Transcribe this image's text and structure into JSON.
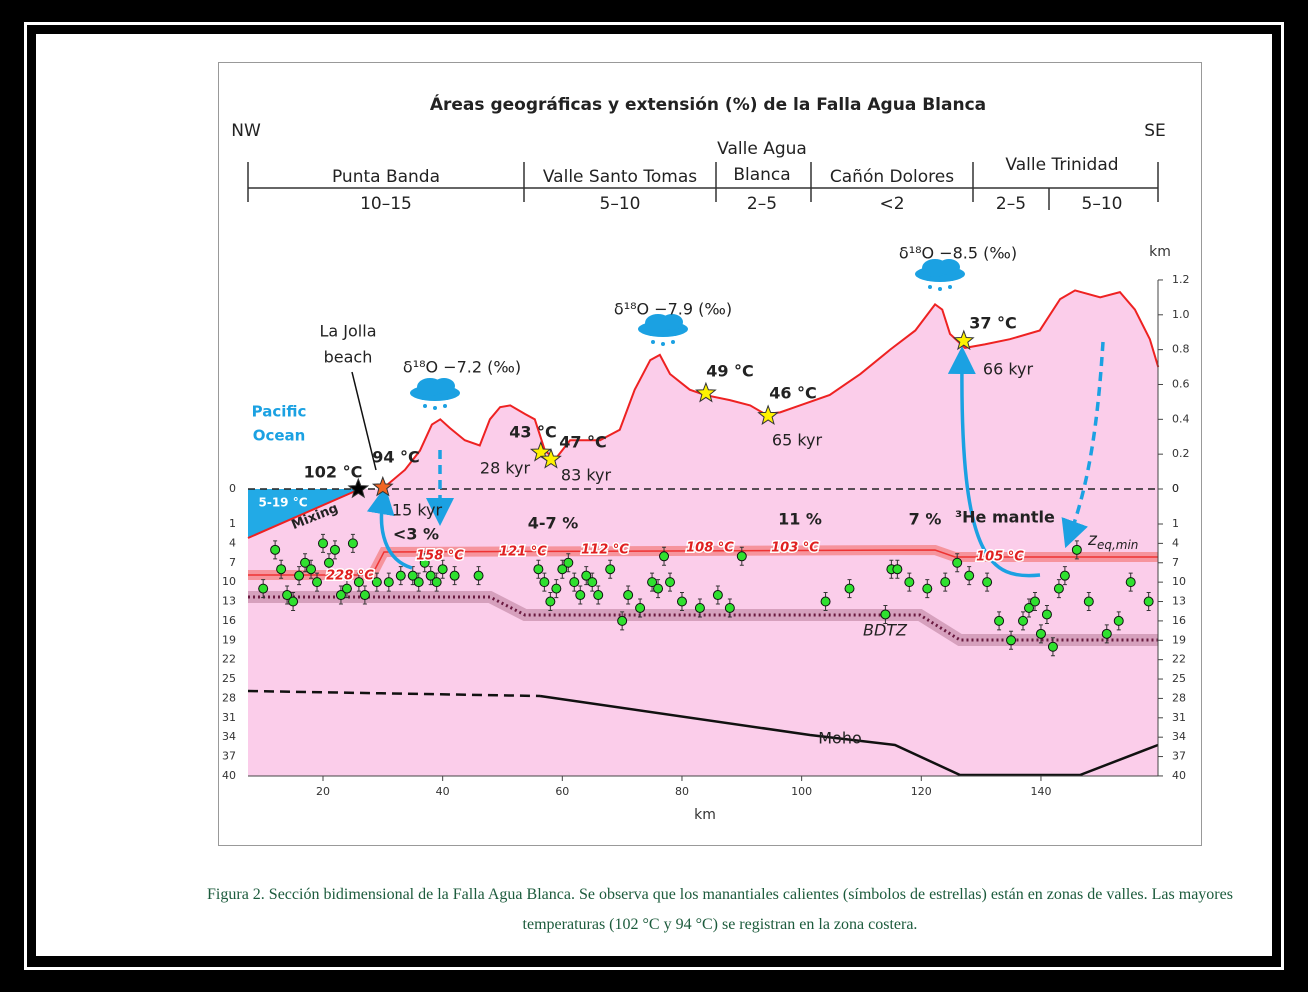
{
  "title": "Áreas geográficas y extensión (%) de la Falla Agua Blanca",
  "nw": "NW",
  "se": "SE",
  "regions": [
    {
      "name_lines": [
        "Punta Banda"
      ],
      "extension": "10–15"
    },
    {
      "name_lines": [
        "Valle Santo Tomas"
      ],
      "extension": "5–10"
    },
    {
      "name_lines": [
        "Valle Agua",
        "Blanca"
      ],
      "extension": "2–5"
    },
    {
      "name_lines": [
        "Cañón Dolores"
      ],
      "extension": "<2"
    },
    {
      "name_lines": [
        "Valle Trinidad"
      ],
      "extensions": [
        "2–5",
        "5–10"
      ]
    }
  ],
  "axes": {
    "xlabel": "km",
    "ylabel_right": "km",
    "xticks": [
      20,
      40,
      60,
      80,
      100,
      120,
      140
    ],
    "elev_ticks": [
      0,
      0.2,
      0.4,
      0.6,
      0.8,
      {
        "value": 1,
        "label": "1.0"
      },
      1.2
    ],
    "depth_ticks": [
      0,
      1,
      4,
      7,
      10,
      13,
      16,
      19,
      22,
      25,
      28,
      31,
      34,
      37,
      40
    ]
  },
  "topography": {
    "km": [
      29.9,
      33.7,
      36.2,
      38.2,
      39.6,
      41.2,
      43.7,
      46.2,
      47.9,
      49.6,
      51.3,
      53.8,
      55.4,
      57.1,
      58.8,
      61.3,
      63.8,
      66.3,
      69.6,
      72.1,
      74.7,
      76.3,
      78.0,
      81.3,
      83.8,
      88.0,
      91.4,
      93.9,
      96.4,
      99.7,
      104.7,
      109.8,
      114.8,
      119.0,
      122.3,
      123.5,
      124.8,
      127.3,
      130.6,
      134.8,
      139.8,
      143.2,
      145.7,
      149.9,
      153.2,
      155.7,
      158.2,
      159.6
    ],
    "elev": [
      0,
      0.11,
      0.22,
      0.37,
      0.4,
      0.35,
      0.28,
      0.25,
      0.4,
      0.47,
      0.48,
      0.43,
      0.4,
      0.22,
      0.17,
      0.28,
      0.28,
      0.28,
      0.34,
      0.57,
      0.74,
      0.77,
      0.66,
      0.57,
      0.54,
      0.51,
      0.48,
      0.43,
      0.44,
      0.48,
      0.54,
      0.66,
      0.8,
      0.91,
      1.06,
      1.03,
      0.89,
      0.81,
      0.83,
      0.86,
      0.91,
      1.09,
      1.14,
      1.1,
      1.13,
      1.03,
      0.86,
      0.7
    ]
  },
  "springs": [
    {
      "temp": "102 °C",
      "km": 25.9,
      "elev": 0,
      "color": "#000000"
    },
    {
      "temp": "94 °C",
      "age": "15 kyr",
      "km": 30.0,
      "elev": 0.01,
      "color": "#f26522"
    },
    {
      "temp": "43 °C",
      "age": "28 kyr",
      "km": 56.4,
      "elev": 0.21,
      "color": "#fff200"
    },
    {
      "temp": "47 °C",
      "age": "83 kyr",
      "km": 58.1,
      "elev": 0.17,
      "color": "#fff200"
    },
    {
      "temp": "49 °C",
      "km": 84.0,
      "elev": 0.55,
      "color": "#fff200"
    },
    {
      "temp": "46 °C",
      "age": "65 kyr",
      "km": 94.4,
      "elev": 0.42,
      "color": "#fff200"
    },
    {
      "temp": "37 °C",
      "age": "66 kyr",
      "km": 127.1,
      "elev": 0.85,
      "color": "#fff200"
    }
  ],
  "hypocenters": {
    "km": [
      10,
      12,
      13,
      14,
      15,
      16,
      17,
      18,
      19,
      20,
      21,
      22,
      23,
      24,
      25,
      26,
      27,
      29,
      31,
      33,
      35,
      36,
      37,
      38,
      39,
      40,
      42,
      46,
      56,
      57,
      58,
      59,
      60,
      61,
      62,
      63,
      64,
      65,
      66,
      68,
      70,
      71,
      73,
      75,
      76,
      77,
      78,
      80,
      83,
      86,
      88,
      90,
      104,
      108,
      114,
      115,
      116,
      118,
      121,
      124,
      126,
      128,
      131,
      133,
      135,
      137,
      138,
      139,
      140,
      141,
      142,
      143,
      144,
      146,
      148,
      151,
      153,
      155,
      158
    ],
    "depth": [
      11,
      5,
      8,
      12,
      13,
      9,
      7,
      8,
      10,
      4,
      7,
      5,
      12,
      11,
      4,
      10,
      12,
      10,
      10,
      9,
      9,
      10,
      7,
      9,
      10,
      8,
      9,
      9,
      8,
      10,
      13,
      11,
      8,
      7,
      10,
      12,
      9,
      10,
      12,
      8,
      16,
      12,
      14,
      10,
      11,
      6,
      10,
      13,
      14,
      12,
      14,
      6,
      13,
      11,
      15,
      8,
      8,
      10,
      11,
      10,
      7,
      9,
      10,
      16,
      19,
      16,
      14,
      13,
      18,
      15,
      20,
      11,
      9,
      5,
      13,
      18,
      16,
      10,
      13
    ]
  },
  "annotations": {
    "la_jolla": [
      "La Jolla",
      "beach"
    ],
    "pacific": [
      "Pacific",
      "Ocean"
    ],
    "mixing": "Mixing",
    "ocean_temp": "5-19 °C",
    "isotopes": [
      "δ¹⁸O −7.2 (‰)",
      "δ¹⁸O −7.9 (‰)",
      "δ¹⁸O −8.5 (‰)"
    ],
    "extension_pct": [
      "<3 %",
      "4-7 %",
      "11 %",
      "7 %"
    ],
    "he_mantle": "³He mantle",
    "zeq": {
      "base": "z",
      "sub": "eq,min"
    },
    "bdtz": "BDTZ",
    "moho": "Moho",
    "isotherms": [
      "228 °C",
      "158 °C",
      "121 °C",
      "112 °C",
      "108 °C",
      "103 °C",
      "105 °C"
    ]
  },
  "caption": "Figura 2. Sección bidimensional de la Falla Agua Blanca. Se observa que los manantiales calientes (símbolos de estrellas) están en zonas de valles. Las mayores temperaturas (102 °C y 94 °C) se registran en la zona costera."
}
